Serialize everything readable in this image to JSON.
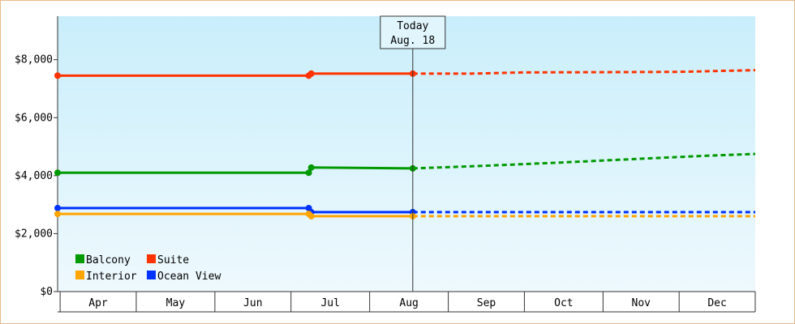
{
  "chart_data": {
    "type": "line",
    "title": "",
    "xlabel": "",
    "ylabel": "",
    "ylim": [
      0,
      9500
    ],
    "y_ticks": [
      0,
      2000,
      4000,
      6000,
      8000
    ],
    "y_tick_labels": [
      "$0",
      "$2,000",
      "$4,000",
      "$6,000",
      "$8,000"
    ],
    "x_range": [
      "2024-03-31",
      "2024-12-31"
    ],
    "categories": [
      "Apr",
      "May",
      "Jun",
      "Jul",
      "Aug",
      "Sep",
      "Oct",
      "Nov",
      "Dec"
    ],
    "grid": false,
    "legend_position": "bottom-left",
    "today_marker": {
      "date": "2024-08-18",
      "line1": "Today",
      "line2": "Aug. 18"
    },
    "series": [
      {
        "name": "Suite",
        "color": "#ff3300",
        "points": [
          [
            "2024-03-31",
            7450
          ],
          [
            "2024-07-08",
            7450
          ],
          [
            "2024-07-09",
            7520
          ],
          [
            "2024-08-18",
            7520
          ]
        ],
        "projection": [
          [
            "2024-08-18",
            7520
          ],
          [
            "2024-09-10",
            7520
          ],
          [
            "2024-10-01",
            7560
          ],
          [
            "2024-11-01",
            7570
          ],
          [
            "2024-12-01",
            7580
          ],
          [
            "2024-12-31",
            7640
          ]
        ]
      },
      {
        "name": "Balcony",
        "color": "#009900",
        "points": [
          [
            "2024-03-31",
            4100
          ],
          [
            "2024-07-08",
            4100
          ],
          [
            "2024-07-09",
            4280
          ],
          [
            "2024-08-18",
            4250
          ]
        ],
        "projection": [
          [
            "2024-08-18",
            4250
          ],
          [
            "2024-09-15",
            4340
          ],
          [
            "2024-10-15",
            4450
          ],
          [
            "2024-11-15",
            4580
          ],
          [
            "2024-12-10",
            4680
          ],
          [
            "2024-12-31",
            4750
          ]
        ]
      },
      {
        "name": "Ocean View",
        "color": "#0033ff",
        "points": [
          [
            "2024-03-31",
            2880
          ],
          [
            "2024-07-08",
            2880
          ],
          [
            "2024-07-09",
            2740
          ],
          [
            "2024-08-18",
            2740
          ]
        ],
        "projection": [
          [
            "2024-08-18",
            2740
          ],
          [
            "2024-12-31",
            2740
          ]
        ]
      },
      {
        "name": "Interior",
        "color": "#ffa500",
        "points": [
          [
            "2024-03-31",
            2680
          ],
          [
            "2024-07-08",
            2680
          ],
          [
            "2024-07-09",
            2600
          ],
          [
            "2024-08-18",
            2600
          ]
        ],
        "projection": [
          [
            "2024-08-18",
            2600
          ],
          [
            "2024-12-31",
            2600
          ]
        ]
      }
    ],
    "legend": [
      {
        "name": "Balcony",
        "color": "#009900"
      },
      {
        "name": "Suite",
        "color": "#ff3300"
      },
      {
        "name": "Interior",
        "color": "#ffa500"
      },
      {
        "name": "Ocean View",
        "color": "#0033ff"
      }
    ]
  }
}
